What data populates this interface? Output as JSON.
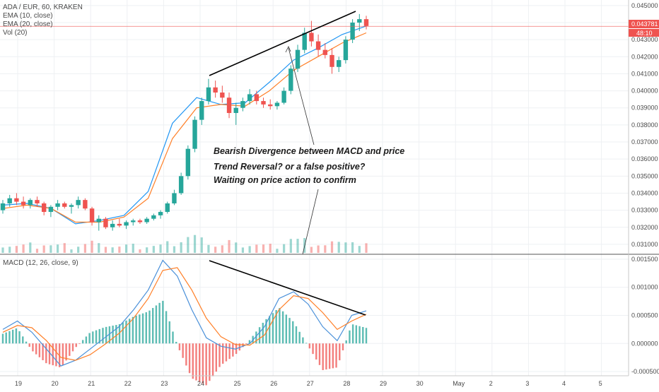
{
  "header": {
    "symbol_line": "ADA / EUR, 60, KRAKEN",
    "ema10_label": "EMA (10, close)",
    "ema20_label": "EMA (20, close)",
    "vol_label": "Vol (20)",
    "macd_label": "MACD (12, 26, close, 9)"
  },
  "annotations": {
    "line1": "Bearish Divergence between MACD and price",
    "line2": "Trend Reversal? or a false positive?",
    "line3": "Waiting on price action to confirm"
  },
  "price_tags": {
    "last_price": "0.043781",
    "countdown": "48:10"
  },
  "colors": {
    "up": "#26a69a",
    "down": "#ef5350",
    "ema10": "#2196f3",
    "ema20": "#ff7f27",
    "macd_line": "#4a90d9",
    "signal_line": "#ff7f27",
    "price_line": "#ef5350",
    "trendline": "#000000",
    "grid": "#eef0f3",
    "axis_text": "#4a4a4a"
  },
  "chart_data": [
    {
      "type": "line",
      "title": "ADA / EUR, 60, KRAKEN",
      "subtype": "candlestick",
      "x_ticks": [
        "19",
        "20",
        "21",
        "22",
        "23",
        "24",
        "25",
        "26",
        "27",
        "28",
        "29",
        "30",
        "May",
        "2",
        "3",
        "4",
        "5"
      ],
      "y_ticks": [
        "0.045000",
        "0.044000",
        "0.043000",
        "0.042000",
        "0.041000",
        "0.040000",
        "0.039000",
        "0.038000",
        "0.037000",
        "0.036000",
        "0.035000",
        "0.034000",
        "0.033000",
        "0.032000",
        "0.031000"
      ],
      "ylim": [
        0.0305,
        0.0452
      ],
      "last_price": 0.043781,
      "series": [
        {
          "name": "EMA (10, close)",
          "values": [
            0.0333,
            0.0334,
            0.0331,
            0.0322,
            0.0324,
            0.0327,
            0.0341,
            0.0381,
            0.0396,
            0.0392,
            0.0393,
            0.0405,
            0.0418,
            0.0425,
            0.0433,
            0.0438
          ]
        },
        {
          "name": "EMA (20, close)",
          "values": [
            0.0331,
            0.0333,
            0.0331,
            0.0323,
            0.0323,
            0.0326,
            0.0337,
            0.0372,
            0.039,
            0.0392,
            0.0391,
            0.04,
            0.0412,
            0.042,
            0.0428,
            0.0434
          ]
        }
      ],
      "candles_approx": [
        [
          0.033,
          0.0336,
          0.0328,
          0.0334
        ],
        [
          0.0334,
          0.0339,
          0.0332,
          0.0337
        ],
        [
          0.0337,
          0.034,
          0.0333,
          0.0335
        ],
        [
          0.0335,
          0.0338,
          0.0331,
          0.0333
        ],
        [
          0.0333,
          0.0337,
          0.0331,
          0.0336
        ],
        [
          0.0336,
          0.0338,
          0.0332,
          0.0334
        ],
        [
          0.0334,
          0.0335,
          0.0327,
          0.0329
        ],
        [
          0.0329,
          0.0333,
          0.0326,
          0.0332
        ],
        [
          0.0332,
          0.0336,
          0.033,
          0.0334
        ],
        [
          0.0334,
          0.0335,
          0.0331,
          0.0332
        ],
        [
          0.0332,
          0.0334,
          0.0328,
          0.0333
        ],
        [
          0.0333,
          0.0338,
          0.0331,
          0.0336
        ],
        [
          0.0336,
          0.0337,
          0.033,
          0.0331
        ],
        [
          0.0331,
          0.0332,
          0.0321,
          0.0323
        ],
        [
          0.0323,
          0.0327,
          0.0318,
          0.0325
        ],
        [
          0.0325,
          0.0326,
          0.0319,
          0.032
        ],
        [
          0.032,
          0.0324,
          0.0318,
          0.0322
        ],
        [
          0.0322,
          0.0325,
          0.032,
          0.0321
        ],
        [
          0.0321,
          0.0324,
          0.0319,
          0.0323
        ],
        [
          0.0323,
          0.0325,
          0.0321,
          0.0324
        ],
        [
          0.0324,
          0.0325,
          0.0322,
          0.0323
        ],
        [
          0.0323,
          0.0326,
          0.0322,
          0.0325
        ],
        [
          0.0325,
          0.0328,
          0.0324,
          0.0327
        ],
        [
          0.0327,
          0.033,
          0.0325,
          0.0329
        ],
        [
          0.0329,
          0.0335,
          0.0328,
          0.0334
        ],
        [
          0.0334,
          0.0342,
          0.0333,
          0.034
        ],
        [
          0.034,
          0.0352,
          0.0339,
          0.035
        ],
        [
          0.035,
          0.0368,
          0.0348,
          0.0366
        ],
        [
          0.0366,
          0.0385,
          0.0364,
          0.0383
        ],
        [
          0.0383,
          0.0396,
          0.038,
          0.0394
        ],
        [
          0.0394,
          0.0407,
          0.0392,
          0.0402
        ],
        [
          0.0402,
          0.0406,
          0.0396,
          0.0399
        ],
        [
          0.0399,
          0.0403,
          0.0393,
          0.0396
        ],
        [
          0.0396,
          0.0399,
          0.0384,
          0.0387
        ],
        [
          0.0387,
          0.0393,
          0.038,
          0.039
        ],
        [
          0.039,
          0.0396,
          0.0388,
          0.0394
        ],
        [
          0.0394,
          0.0401,
          0.0392,
          0.0398
        ],
        [
          0.0398,
          0.04,
          0.0392,
          0.0394
        ],
        [
          0.0394,
          0.0396,
          0.039,
          0.0392
        ],
        [
          0.0392,
          0.0395,
          0.0389,
          0.0391
        ],
        [
          0.0391,
          0.0394,
          0.0389,
          0.0393
        ],
        [
          0.0393,
          0.0402,
          0.0392,
          0.04
        ],
        [
          0.04,
          0.0415,
          0.0398,
          0.0413
        ],
        [
          0.0413,
          0.0427,
          0.0411,
          0.0424
        ],
        [
          0.0424,
          0.0437,
          0.0422,
          0.0434
        ],
        [
          0.0434,
          0.0441,
          0.0426,
          0.0429
        ],
        [
          0.0429,
          0.0433,
          0.042,
          0.0424
        ],
        [
          0.0424,
          0.0428,
          0.0419,
          0.0421
        ],
        [
          0.0421,
          0.0425,
          0.041,
          0.0414
        ],
        [
          0.0414,
          0.042,
          0.0411,
          0.0418
        ],
        [
          0.0418,
          0.0432,
          0.0416,
          0.043
        ],
        [
          0.043,
          0.0442,
          0.0428,
          0.044
        ],
        [
          0.044,
          0.0445,
          0.0435,
          0.0442
        ],
        [
          0.0442,
          0.0444,
          0.0436,
          0.0438
        ]
      ]
    },
    {
      "type": "bar",
      "title": "Vol (20)",
      "note": "volume histogram beneath price pane"
    },
    {
      "type": "line",
      "title": "MACD (12, 26, close, 9)",
      "y_ticks": [
        "0.001500",
        "0.001000",
        "0.000500",
        "0.000000",
        "-0.000500"
      ],
      "ylim": [
        -0.00055,
        0.00155
      ],
      "series": [
        {
          "name": "MACD",
          "values": [
            0.00025,
            0.0004,
            0.0002,
            -0.0001,
            -0.0004,
            -0.0003,
            -0.0001,
            0.0001,
            0.0003,
            0.0006,
            0.00095,
            0.00148,
            0.0012,
            0.0006,
            0.0001,
            -5e-05,
            -0.0001,
            0.0,
            0.0003,
            0.0008,
            0.00092,
            0.0007,
            0.0003,
            5e-05,
            0.0005,
            0.00058
          ]
        },
        {
          "name": "Signal",
          "values": [
            0.0002,
            0.00032,
            0.00028,
            5e-05,
            -0.00025,
            -0.0003,
            -0.0002,
            -2e-05,
            0.00018,
            0.00045,
            0.0008,
            0.0013,
            0.00135,
            0.00095,
            0.00045,
            0.00012,
            -2e-05,
            -3e-05,
            0.00015,
            0.0006,
            0.00085,
            0.0008,
            0.00055,
            0.00025,
            0.0004,
            0.00052
          ]
        }
      ]
    }
  ]
}
